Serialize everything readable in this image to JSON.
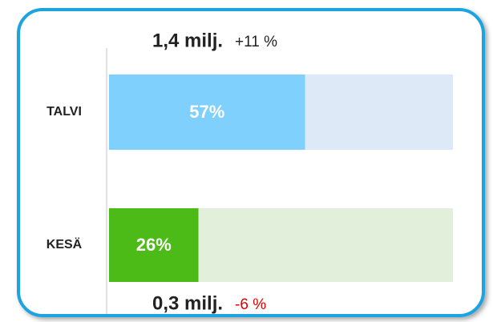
{
  "chart_data": {
    "type": "bar",
    "orientation": "horizontal",
    "categories": [
      "TALVI",
      "KESÄ"
    ],
    "values": [
      57,
      26
    ],
    "value_labels": [
      "57%",
      "26%"
    ],
    "colors": [
      "#7fd0fd",
      "#4cbb17"
    ],
    "track_colors": [
      "#dde9f6",
      "#e2efda"
    ],
    "xlim": [
      0,
      100
    ],
    "annotations": [
      {
        "text": "1,4 milj.",
        "change": "+11 %",
        "change_color": "#222222"
      },
      {
        "text": "0,3 milj.",
        "change": "-6 %",
        "change_color": "#e00000"
      }
    ]
  }
}
